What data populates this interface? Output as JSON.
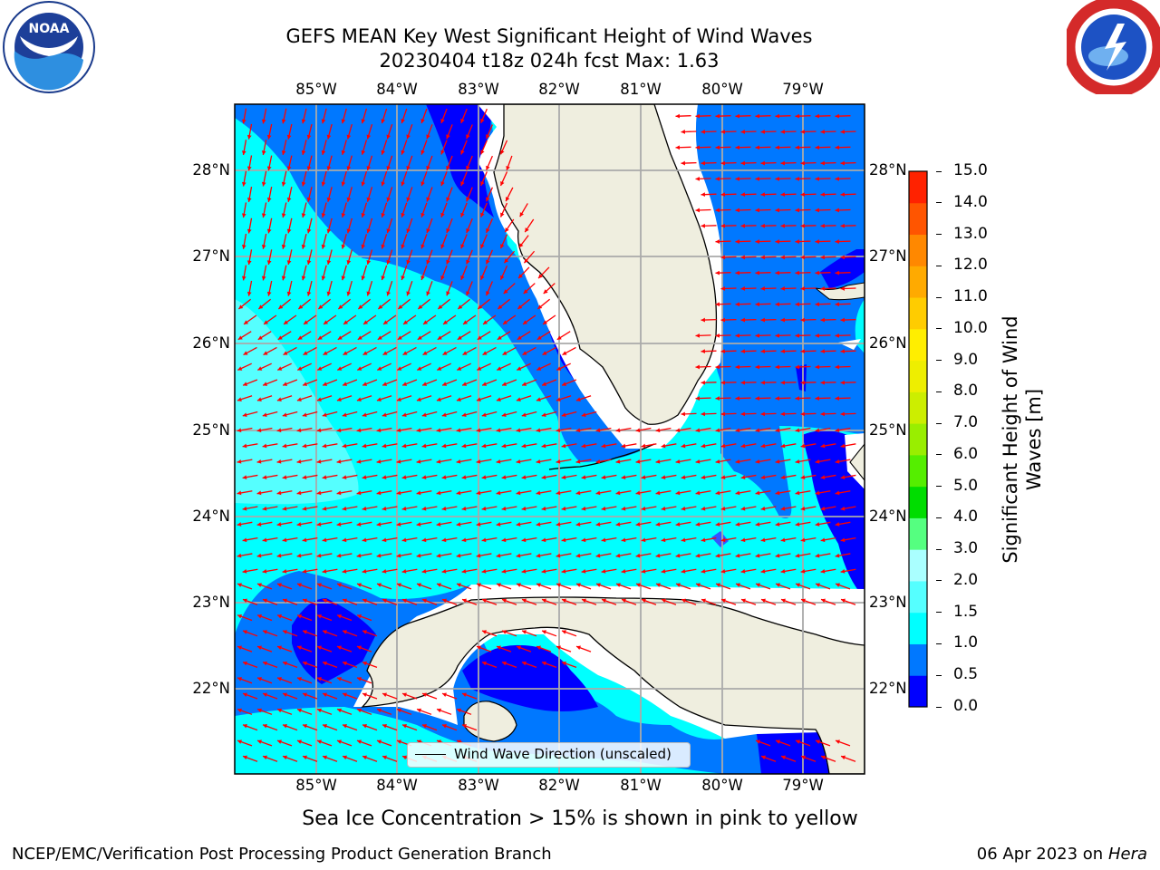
{
  "header": {
    "title_line1": "GEFS MEAN Key West Significant Height of Wind Waves",
    "title_line2": "20230404 t18z 024h fcst   Max: 1.63"
  },
  "logos": {
    "left": "NOAA",
    "left_ring_text": "NATIONAL OCEANIC AND ATMOSPHERIC ADMINISTRATION · U.S. DEPARTMENT OF COMMERCE",
    "right_ring_text": "NATIONAL WEATHER SERVICE"
  },
  "map": {
    "lon_ticks": [
      "85°W",
      "84°W",
      "83°W",
      "82°W",
      "81°W",
      "80°W",
      "79°W"
    ],
    "lat_ticks": [
      "28°N",
      "27°N",
      "26°N",
      "25°N",
      "24°N",
      "23°N",
      "22°N"
    ],
    "legend_label": "Wind Wave Direction (unscaled)",
    "arrow_color": "#ff0000",
    "land_color": "#efeedf"
  },
  "colorbar": {
    "title": "Significant Height of Wind Waves [m]",
    "tick_labels": [
      "0.0",
      "0.5",
      "1.0",
      "1.5",
      "2.0",
      "3.0",
      "4.0",
      "5.0",
      "6.0",
      "7.0",
      "8.0",
      "9.0",
      "10.0",
      "11.0",
      "12.0",
      "13.0",
      "14.0",
      "15.0"
    ],
    "colors": [
      "#0000ff",
      "#0078ff",
      "#00ffff",
      "#55ffff",
      "#aaffff",
      "#55ff80",
      "#00dd00",
      "#55ee00",
      "#99ee00",
      "#ccee00",
      "#eeee00",
      "#ffee00",
      "#ffcc00",
      "#ffaa00",
      "#ff8800",
      "#ff5500",
      "#ff2200"
    ]
  },
  "notes": {
    "ice_note": "Sea Ice Concentration > 15% is shown in pink to yellow"
  },
  "footer": {
    "left": "NCEP/EMC/Verification Post Processing Product Generation Branch",
    "right_date": "06 Apr 2023 on ",
    "right_host": "Hera"
  }
}
